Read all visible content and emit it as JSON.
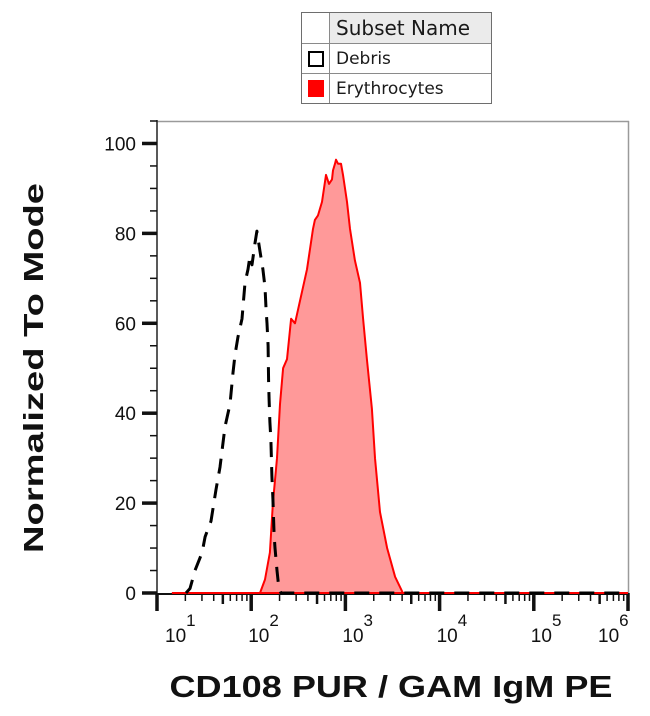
{
  "legend": {
    "header_label": "Subset Name",
    "items": [
      {
        "label": "Debris",
        "swatch": "outline",
        "color": "#000000"
      },
      {
        "label": "Erythrocytes",
        "swatch": "filled",
        "color": "#ff0000"
      }
    ]
  },
  "chart_data": {
    "type": "area",
    "title": "",
    "xlabel": "CD108 PUR / GAM IgM PE",
    "ylabel": "Normalized To Mode",
    "x_scale": "log",
    "xlim": [
      10,
      1000000
    ],
    "ylim": [
      0,
      105
    ],
    "x_ticks": [
      {
        "value": 10,
        "base": "10",
        "exp": "1"
      },
      {
        "value": 100,
        "base": "10",
        "exp": "2"
      },
      {
        "value": 1000,
        "base": "10",
        "exp": "3"
      },
      {
        "value": 10000,
        "base": "10",
        "exp": "4"
      },
      {
        "value": 100000,
        "base": "10",
        "exp": "5"
      },
      {
        "value": 1000000,
        "base": "10",
        "exp": "6"
      }
    ],
    "y_ticks": [
      0,
      20,
      40,
      60,
      80,
      100
    ],
    "y_minor_step": 5,
    "grid": false,
    "legend_position": "top",
    "series": [
      {
        "name": "Debris",
        "style": "dashed-line",
        "stroke": "#000000",
        "fill": "none",
        "x": [
          20.3,
          22.4,
          25.3,
          30.1,
          32.4,
          37.4,
          42.3,
          46.7,
          52.7,
          59.6,
          64.1,
          67.3,
          72.4,
          79.8,
          85.9,
          92.5,
          97.0,
          102,
          110,
          115,
          124,
          133,
          140,
          144,
          147,
          151,
          153,
          155,
          158,
          162,
          166,
          170,
          175,
          179,
          188,
          197,
          207,
          1000000
        ],
        "y": [
          0,
          1,
          5,
          9,
          12.5,
          16,
          23,
          28,
          37,
          42,
          49,
          53,
          57,
          61,
          69,
          72,
          75,
          73,
          78,
          80.5,
          76,
          72,
          68,
          63,
          60,
          55,
          47,
          43,
          38,
          34,
          26,
          21,
          13,
          10,
          5,
          1,
          0,
          0
        ]
      },
      {
        "name": "Erythrocytes",
        "style": "filled-area",
        "stroke": "#ff0000",
        "fill": "#ff9999",
        "x": [
          14.4,
          124,
          140,
          158,
          170,
          188,
          202,
          218,
          240,
          265,
          292,
          330,
          391,
          453,
          475,
          512,
          565,
          622,
          670,
          721,
          738,
          776,
          794,
          834,
          897,
          944,
          1040,
          1120,
          1260,
          1430,
          1540,
          1690,
          1910,
          2060,
          2330,
          2770,
          3370,
          4080,
          1000000
        ],
        "y": [
          0,
          0,
          3,
          9,
          20,
          30,
          42,
          50,
          52,
          61,
          60,
          65,
          72,
          81,
          83,
          84,
          87,
          93,
          91,
          92,
          94,
          95.5,
          96.4,
          95.5,
          95.5,
          93,
          87,
          81,
          74,
          69,
          61,
          52,
          41,
          30,
          18,
          10,
          3.6,
          0,
          0
        ]
      }
    ]
  }
}
